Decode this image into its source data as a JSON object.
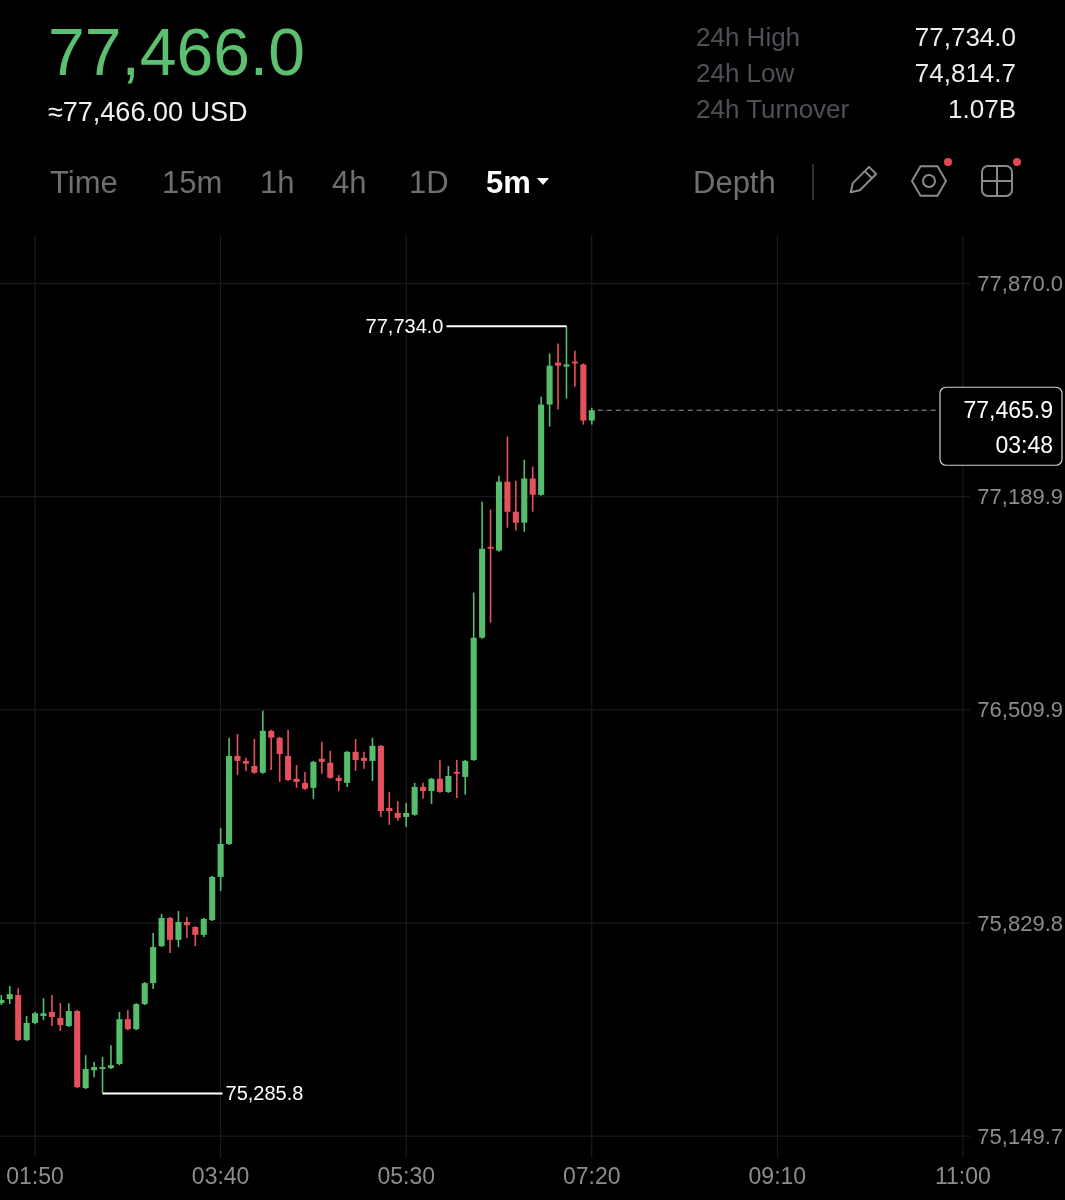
{
  "chart_data": {
    "type": "candlestick",
    "title": "77,466.0",
    "subtitle": "≈77,466.00 USD",
    "x": [
      1.5,
      1.5833,
      1.6667,
      1.75,
      1.8333,
      1.9167,
      2,
      2.0833,
      2.1667,
      2.25,
      2.3333,
      2.4167,
      2.5,
      2.5833,
      2.6667,
      2.75,
      2.8333,
      2.9167,
      3,
      3.0833,
      3.1667,
      3.25,
      3.3333,
      3.4167,
      3.5,
      3.5833,
      3.6667,
      3.75,
      3.8333,
      3.9167,
      4,
      4.0833,
      4.1667,
      4.25,
      4.3333,
      4.4167,
      4.5,
      4.5833,
      4.6667,
      4.75,
      4.8333,
      4.9167,
      5,
      5.0833,
      5.1667,
      5.25,
      5.3333,
      5.4167,
      5.5,
      5.5833,
      5.6667,
      5.75,
      5.8333,
      5.9167,
      6,
      6.0833,
      6.1667,
      6.25,
      6.3333,
      6.4167,
      6.5,
      6.5833,
      6.6667,
      6.75,
      6.8333,
      6.9167,
      7,
      7.0833,
      7.1667,
      7.25,
      7.3333
    ],
    "ohlc": [
      [
        75574,
        75600,
        75568,
        75584
      ],
      [
        75587,
        75629,
        75571,
        75603
      ],
      [
        75600,
        75622,
        75453,
        75456
      ],
      [
        75456,
        75533,
        75453,
        75511
      ],
      [
        75511,
        75546,
        75507,
        75542
      ],
      [
        75533,
        75590,
        75520,
        75542
      ],
      [
        75546,
        75600,
        75501,
        75530
      ],
      [
        75527,
        75574,
        75485,
        75504
      ],
      [
        75501,
        75574,
        75498,
        75549
      ],
      [
        75549,
        75552,
        75303,
        75306
      ],
      [
        75303,
        75408,
        75300,
        75364
      ],
      [
        75360,
        75386,
        75338,
        75370
      ],
      [
        75364,
        75402,
        75285.8,
        75370
      ],
      [
        75367,
        75440,
        75364,
        75376
      ],
      [
        75380,
        75546,
        75376,
        75523
      ],
      [
        75523,
        75552,
        75488,
        75491
      ],
      [
        75491,
        75574,
        75488,
        75571
      ],
      [
        75571,
        75641,
        75568,
        75638
      ],
      [
        75638,
        75798,
        75619,
        75753
      ],
      [
        75756,
        75859,
        75753,
        75846
      ],
      [
        75846,
        75849,
        75734,
        75776
      ],
      [
        75776,
        75868,
        75753,
        75833
      ],
      [
        75833,
        75849,
        75782,
        75823
      ],
      [
        75817,
        75820,
        75756,
        75792
      ],
      [
        75792,
        75846,
        75785,
        75843
      ],
      [
        75839,
        75980,
        75836,
        75977
      ],
      [
        75977,
        76133,
        75932,
        76082
      ],
      [
        76082,
        76421,
        76079,
        76363
      ],
      [
        76363,
        76433,
        76302,
        76347
      ],
      [
        76347,
        76357,
        76315,
        76338
      ],
      [
        76331,
        76417,
        76306,
        76309
      ],
      [
        76309,
        76507,
        76306,
        76443
      ],
      [
        76443,
        76446,
        76318,
        76421
      ],
      [
        76421,
        76424,
        76280,
        76369
      ],
      [
        76363,
        76446,
        76283,
        76286
      ],
      [
        76290,
        76334,
        76261,
        76280
      ],
      [
        76277,
        76312,
        76255,
        76258
      ],
      [
        76261,
        76347,
        76226,
        76344
      ],
      [
        76354,
        76408,
        76306,
        76344
      ],
      [
        76341,
        76379,
        76290,
        76293
      ],
      [
        76293,
        76302,
        76251,
        76283
      ],
      [
        76277,
        76379,
        76264,
        76376
      ],
      [
        76376,
        76417,
        76315,
        76350
      ],
      [
        76357,
        76376,
        76322,
        76347
      ],
      [
        76347,
        76421,
        76283,
        76395
      ],
      [
        76395,
        76398,
        76168,
        76187
      ],
      [
        76197,
        76248,
        76143,
        76187
      ],
      [
        76181,
        76219,
        76156,
        76165
      ],
      [
        76168,
        76213,
        76136,
        76181
      ],
      [
        76175,
        76277,
        76172,
        76264
      ],
      [
        76264,
        76277,
        76226,
        76251
      ],
      [
        76251,
        76293,
        76210,
        76290
      ],
      [
        76290,
        76350,
        76245,
        76248
      ],
      [
        76248,
        76331,
        76245,
        76299
      ],
      [
        76312,
        76350,
        76229,
        76306
      ],
      [
        76296,
        76350,
        76239,
        76347
      ],
      [
        76350,
        76884,
        76347,
        76740
      ],
      [
        76740,
        77174,
        76737,
        77024
      ],
      [
        77030,
        77149,
        76788,
        77024
      ],
      [
        77018,
        77257,
        77014,
        77238
      ],
      [
        77238,
        77382,
        77091,
        77142
      ],
      [
        77142,
        77241,
        77082,
        77107
      ],
      [
        77107,
        77308,
        77078,
        77248
      ],
      [
        77248,
        77286,
        77142,
        77196
      ],
      [
        77196,
        77509,
        77193,
        77484
      ],
      [
        77484,
        77647,
        77414,
        77608
      ],
      [
        77618,
        77679,
        77468,
        77608
      ],
      [
        77605,
        77734.0,
        77503,
        77612
      ],
      [
        77621,
        77656,
        77541,
        77615
      ],
      [
        77612,
        77615,
        77420,
        77433
      ],
      [
        77433,
        77474,
        77420,
        77465.9
      ]
    ],
    "colors": [
      "#55bd6c",
      "#55bd6c",
      "#e5515a",
      "#55bd6c",
      "#55bd6c",
      "#55bd6c",
      "#e5515a",
      "#e5515a",
      "#55bd6c",
      "#e5515a",
      "#55bd6c",
      "#55bd6c",
      "#55bd6c",
      "#55bd6c",
      "#55bd6c",
      "#e5515a",
      "#55bd6c",
      "#55bd6c",
      "#55bd6c",
      "#55bd6c",
      "#e5515a",
      "#55bd6c",
      "#e5515a",
      "#e5515a",
      "#55bd6c",
      "#55bd6c",
      "#55bd6c",
      "#55bd6c",
      "#e5515a",
      "#e5515a",
      "#e5515a",
      "#55bd6c",
      "#e5515a",
      "#e5515a",
      "#e5515a",
      "#e5515a",
      "#e5515a",
      "#55bd6c",
      "#e5515a",
      "#e5515a",
      "#e5515a",
      "#55bd6c",
      "#e5515a",
      "#e5515a",
      "#55bd6c",
      "#e5515a",
      "#e5515a",
      "#e5515a",
      "#55bd6c",
      "#55bd6c",
      "#e5515a",
      "#55bd6c",
      "#e5515a",
      "#55bd6c",
      "#e5515a",
      "#55bd6c",
      "#55bd6c",
      "#55bd6c",
      "#e5515a",
      "#55bd6c",
      "#e5515a",
      "#e5515a",
      "#55bd6c",
      "#e5515a",
      "#55bd6c",
      "#55bd6c",
      "#e5515a",
      "#55bd6c",
      "#e5515a",
      "#e5515a",
      "#55bd6c"
    ],
    "xlim": [
      1.487,
      11.07
    ],
    "ylim": [
      75080,
      78025
    ],
    "xticks": [
      {
        "value": 1.8333,
        "label": "01:50"
      },
      {
        "value": 3.6667,
        "label": "03:40"
      },
      {
        "value": 5.5,
        "label": "05:30"
      },
      {
        "value": 7.3333,
        "label": "07:20"
      },
      {
        "value": 9.1667,
        "label": "09:10"
      },
      {
        "value": 11,
        "label": "11:00"
      }
    ],
    "yticks": [
      {
        "value": 75149.7,
        "label": "75,149.7"
      },
      {
        "value": 75829.8,
        "label": "75,829.8"
      },
      {
        "value": 76509.9,
        "label": "76,509.9"
      },
      {
        "value": 77189.9,
        "label": "77,189.9"
      },
      {
        "value": 77870.0,
        "label": "77,870.0"
      }
    ],
    "grid": true,
    "ref_lines": [
      {
        "axis": "y",
        "value": 77465.9,
        "label": "77,465.9",
        "color": "#9a9a9a",
        "line_style": "dashed"
      }
    ],
    "annotations": [
      "24h High",
      "77,734.0",
      "24h Low",
      "74,814.7",
      "24h Turnover",
      "1.07B",
      "Time",
      "15m",
      "1h",
      "4h",
      "1D",
      "5m",
      "Depth",
      {
        "text": "77,734.0",
        "x": 7.0833,
        "y": 77734.0
      },
      {
        "text": "75,285.8",
        "x": 2.5,
        "y": 75285.8
      },
      "03:48"
    ]
  }
}
